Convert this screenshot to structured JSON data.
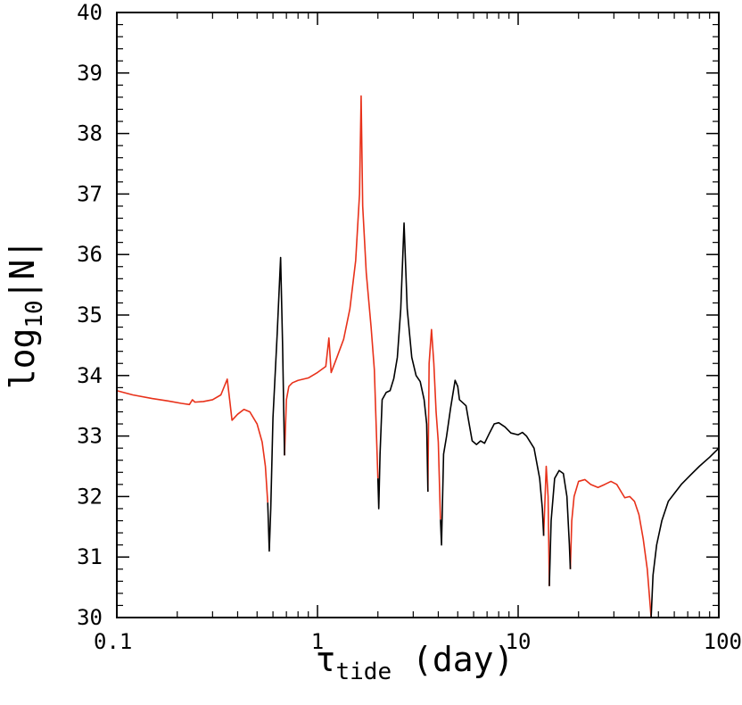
{
  "chart_data": {
    "type": "line",
    "title": "",
    "xlabel": {
      "main": "τ",
      "sub": "tide",
      "suffix": " (day)"
    },
    "ylabel": {
      "main": "log",
      "sub": "10",
      "suffix": "|N|"
    },
    "xscale": "log",
    "xlim": [
      0.1,
      100
    ],
    "ylim": [
      30,
      40
    ],
    "grid": false,
    "legend": "none",
    "x_ticks": [
      {
        "value": 0.1,
        "label": "0.1"
      },
      {
        "value": 1,
        "label": "1"
      },
      {
        "value": 10,
        "label": "10"
      },
      {
        "value": 100,
        "label": "100"
      }
    ],
    "y_ticks": [
      {
        "value": 30,
        "label": "30"
      },
      {
        "value": 31,
        "label": "31"
      },
      {
        "value": 32,
        "label": "32"
      },
      {
        "value": 33,
        "label": "33"
      },
      {
        "value": 34,
        "label": "34"
      },
      {
        "value": 35,
        "label": "35"
      },
      {
        "value": 36,
        "label": "36"
      },
      {
        "value": 37,
        "label": "37"
      },
      {
        "value": 38,
        "label": "38"
      },
      {
        "value": 39,
        "label": "39"
      },
      {
        "value": 40,
        "label": "40"
      }
    ],
    "series": [
      {
        "color": "#e8311a",
        "segments": [
          [
            [
              0.1,
              33.75
            ],
            [
              0.12,
              33.68
            ],
            [
              0.15,
              33.62
            ],
            [
              0.18,
              33.58
            ],
            [
              0.21,
              33.54
            ],
            [
              0.23,
              33.52
            ],
            [
              0.238,
              33.6
            ],
            [
              0.245,
              33.56
            ],
            [
              0.27,
              33.57
            ],
            [
              0.3,
              33.6
            ],
            [
              0.33,
              33.68
            ],
            [
              0.355,
              33.94
            ],
            [
              0.365,
              33.6
            ],
            [
              0.375,
              33.26
            ],
            [
              0.4,
              33.36
            ],
            [
              0.43,
              33.44
            ],
            [
              0.46,
              33.4
            ],
            [
              0.5,
              33.2
            ],
            [
              0.53,
              32.9
            ],
            [
              0.55,
              32.5
            ],
            [
              0.565,
              31.9
            ]
          ],
          [
            [
              0.685,
              32.68
            ],
            [
              0.7,
              33.6
            ],
            [
              0.72,
              33.82
            ],
            [
              0.75,
              33.88
            ],
            [
              0.8,
              33.92
            ],
            [
              0.9,
              33.96
            ],
            [
              1.0,
              34.05
            ],
            [
              1.1,
              34.15
            ],
            [
              1.14,
              34.62
            ],
            [
              1.17,
              34.05
            ],
            [
              1.25,
              34.3
            ],
            [
              1.35,
              34.6
            ],
            [
              1.45,
              35.1
            ],
            [
              1.55,
              35.9
            ],
            [
              1.62,
              37.0
            ],
            [
              1.65,
              38.62
            ],
            [
              1.68,
              36.8
            ],
            [
              1.75,
              35.7
            ],
            [
              1.85,
              34.8
            ],
            [
              1.92,
              34.1
            ],
            [
              2.0,
              32.3
            ]
          ],
          [
            [
              3.55,
              32.08
            ],
            [
              3.6,
              34.2
            ],
            [
              3.7,
              34.76
            ],
            [
              3.8,
              34.2
            ],
            [
              3.9,
              33.4
            ],
            [
              4.0,
              32.9
            ],
            [
              4.1,
              31.62
            ]
          ],
          [
            [
              13.4,
              31.35
            ],
            [
              13.8,
              32.5
            ],
            [
              14.1,
              32.0
            ],
            [
              14.3,
              30.52
            ]
          ],
          [
            [
              18.2,
              30.8
            ],
            [
              18.5,
              31.6
            ],
            [
              19.0,
              32.0
            ],
            [
              20.0,
              32.25
            ],
            [
              21.5,
              32.28
            ],
            [
              23.0,
              32.2
            ],
            [
              25.0,
              32.15
            ],
            [
              27.0,
              32.2
            ],
            [
              29.0,
              32.25
            ],
            [
              31.0,
              32.2
            ],
            [
              33.0,
              32.05
            ],
            [
              34.0,
              31.98
            ],
            [
              36.0,
              32.0
            ],
            [
              38.0,
              31.92
            ],
            [
              40.0,
              31.7
            ],
            [
              42.0,
              31.3
            ],
            [
              44.0,
              30.8
            ],
            [
              46.0,
              30.0
            ]
          ]
        ]
      },
      {
        "color": "#000000",
        "segments": [
          [
            [
              0.565,
              31.9
            ],
            [
              0.575,
              31.1
            ],
            [
              0.585,
              31.8
            ],
            [
              0.6,
              33.3
            ],
            [
              0.63,
              34.7
            ],
            [
              0.655,
              35.95
            ],
            [
              0.67,
              34.5
            ],
            [
              0.685,
              32.68
            ]
          ],
          [
            [
              2.0,
              32.3
            ],
            [
              2.02,
              31.8
            ],
            [
              2.05,
              32.7
            ],
            [
              2.1,
              33.6
            ],
            [
              2.2,
              33.72
            ],
            [
              2.3,
              33.75
            ],
            [
              2.4,
              33.95
            ],
            [
              2.5,
              34.3
            ],
            [
              2.6,
              35.1
            ],
            [
              2.7,
              36.52
            ],
            [
              2.8,
              35.1
            ],
            [
              2.95,
              34.3
            ],
            [
              3.1,
              34.0
            ],
            [
              3.25,
              33.9
            ],
            [
              3.4,
              33.6
            ],
            [
              3.5,
              33.2
            ],
            [
              3.55,
              32.08
            ]
          ],
          [
            [
              4.1,
              31.62
            ],
            [
              4.15,
              31.2
            ],
            [
              4.25,
              32.7
            ],
            [
              4.4,
              33.0
            ],
            [
              4.6,
              33.45
            ],
            [
              4.85,
              33.92
            ],
            [
              5.0,
              33.82
            ],
            [
              5.1,
              33.6
            ],
            [
              5.3,
              33.55
            ],
            [
              5.5,
              33.5
            ],
            [
              5.7,
              33.2
            ],
            [
              5.9,
              32.92
            ],
            [
              6.2,
              32.86
            ],
            [
              6.5,
              32.92
            ],
            [
              6.8,
              32.88
            ],
            [
              7.2,
              33.05
            ],
            [
              7.6,
              33.2
            ],
            [
              8.0,
              33.22
            ],
            [
              8.6,
              33.15
            ],
            [
              9.2,
              33.05
            ],
            [
              10.0,
              33.02
            ],
            [
              10.5,
              33.06
            ],
            [
              11.0,
              33.0
            ],
            [
              12.0,
              32.8
            ],
            [
              12.8,
              32.3
            ],
            [
              13.2,
              31.8
            ],
            [
              13.4,
              31.35
            ]
          ],
          [
            [
              14.3,
              30.52
            ],
            [
              14.6,
              31.6
            ],
            [
              15.2,
              32.3
            ],
            [
              16.0,
              32.43
            ],
            [
              16.8,
              32.38
            ],
            [
              17.5,
              32.0
            ],
            [
              18.0,
              31.2
            ],
            [
              18.2,
              30.8
            ]
          ],
          [
            [
              46.0,
              30.0
            ],
            [
              47.0,
              30.7
            ],
            [
              49.0,
              31.2
            ],
            [
              52.0,
              31.6
            ],
            [
              56.0,
              31.92
            ],
            [
              60.0,
              32.05
            ],
            [
              65.0,
              32.2
            ],
            [
              72.0,
              32.35
            ],
            [
              80.0,
              32.5
            ],
            [
              90.0,
              32.65
            ],
            [
              100.0,
              32.8
            ]
          ]
        ]
      }
    ]
  }
}
